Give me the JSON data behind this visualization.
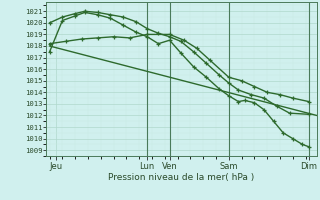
{
  "title": "Pression niveau de la mer( hPa )",
  "ylabel_ticks": [
    1009,
    1010,
    1011,
    1012,
    1013,
    1014,
    1015,
    1016,
    1017,
    1018,
    1019,
    1020,
    1021
  ],
  "ylim": [
    1008.5,
    1021.8
  ],
  "xlim": [
    -0.1,
    8.35
  ],
  "bg_color": "#d0f0ee",
  "line_color": "#2d6a2d",
  "grid_major_color": "#b0d8cc",
  "grid_minor_color": "#c8eae4",
  "xtick_positions": [
    0.2,
    3.05,
    3.75,
    5.6,
    8.1
  ],
  "xtick_labels": [
    "Jeu",
    "Lun",
    "Ven",
    "Sam",
    "Dim"
  ],
  "vlines": [
    3.05,
    3.75,
    5.6,
    8.1
  ],
  "line1_straight": {
    "x": [
      0.0,
      8.35
    ],
    "y": [
      1018.0,
      1012.0
    ]
  },
  "line2_curved_peak": {
    "x": [
      0.0,
      0.4,
      0.8,
      1.1,
      1.5,
      1.9,
      2.3,
      2.7,
      3.05,
      3.4,
      3.75,
      4.1,
      4.5,
      4.9,
      5.3,
      5.6,
      5.9,
      6.3,
      6.7,
      7.1,
      7.5,
      8.1
    ],
    "y": [
      1020.0,
      1020.5,
      1020.8,
      1021.0,
      1020.9,
      1020.7,
      1020.5,
      1020.1,
      1019.5,
      1019.1,
      1018.8,
      1018.4,
      1017.5,
      1016.5,
      1015.5,
      1014.8,
      1014.2,
      1013.8,
      1013.5,
      1012.8,
      1012.2,
      1012.1
    ]
  },
  "line3_dashed": {
    "x": [
      0.0,
      0.5,
      1.0,
      1.5,
      2.0,
      2.5,
      3.05,
      3.75,
      4.2,
      4.6,
      5.0,
      5.6,
      6.0,
      6.4,
      6.8,
      7.2,
      7.6,
      8.1
    ],
    "y": [
      1018.2,
      1018.4,
      1018.6,
      1018.7,
      1018.8,
      1018.7,
      1019.0,
      1019.0,
      1018.5,
      1017.8,
      1016.8,
      1015.3,
      1015.0,
      1014.5,
      1014.0,
      1013.8,
      1013.5,
      1013.2
    ]
  },
  "line4_drop": {
    "x": [
      0.0,
      0.4,
      0.8,
      1.1,
      1.5,
      1.9,
      2.3,
      2.7,
      3.05,
      3.4,
      3.75,
      4.1,
      4.5,
      4.9,
      5.3,
      5.6,
      5.9,
      6.1,
      6.4,
      6.7,
      7.0,
      7.3,
      7.6,
      7.9,
      8.1
    ],
    "y": [
      1017.5,
      1020.2,
      1020.6,
      1020.9,
      1020.7,
      1020.4,
      1019.8,
      1019.2,
      1018.8,
      1018.2,
      1018.5,
      1017.4,
      1016.2,
      1015.3,
      1014.3,
      1013.7,
      1013.2,
      1013.3,
      1013.1,
      1012.5,
      1011.5,
      1010.5,
      1010.0,
      1009.5,
      1009.3
    ]
  }
}
